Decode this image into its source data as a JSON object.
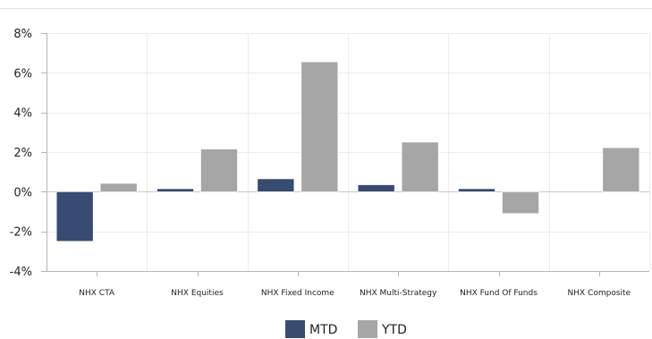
{
  "chart_data": {
    "type": "bar",
    "title": "",
    "xlabel": "",
    "ylabel": "",
    "categories": [
      "NHX CTA",
      "NHX Equities",
      "NHX Fixed Income",
      "NHX Multi-Strategy",
      "NHX Fund Of Funds",
      "NHX Composite"
    ],
    "series": [
      {
        "name": "MTD",
        "color": "#374c70",
        "values": [
          -2.5,
          0.15,
          0.65,
          0.35,
          0.15,
          0.0
        ]
      },
      {
        "name": "YTD",
        "color": "#a6a6a6",
        "values": [
          0.42,
          2.15,
          6.55,
          2.5,
          -1.1,
          2.22
        ]
      }
    ],
    "ylim": [
      -4,
      8
    ],
    "yticks": [
      -4,
      -2,
      0,
      2,
      4,
      6,
      8
    ],
    "ytick_labels": [
      "-4%",
      "-2%",
      "0%",
      "2%",
      "4%",
      "6%",
      "8%"
    ],
    "grid": true,
    "legend_position": "bottom-center"
  }
}
